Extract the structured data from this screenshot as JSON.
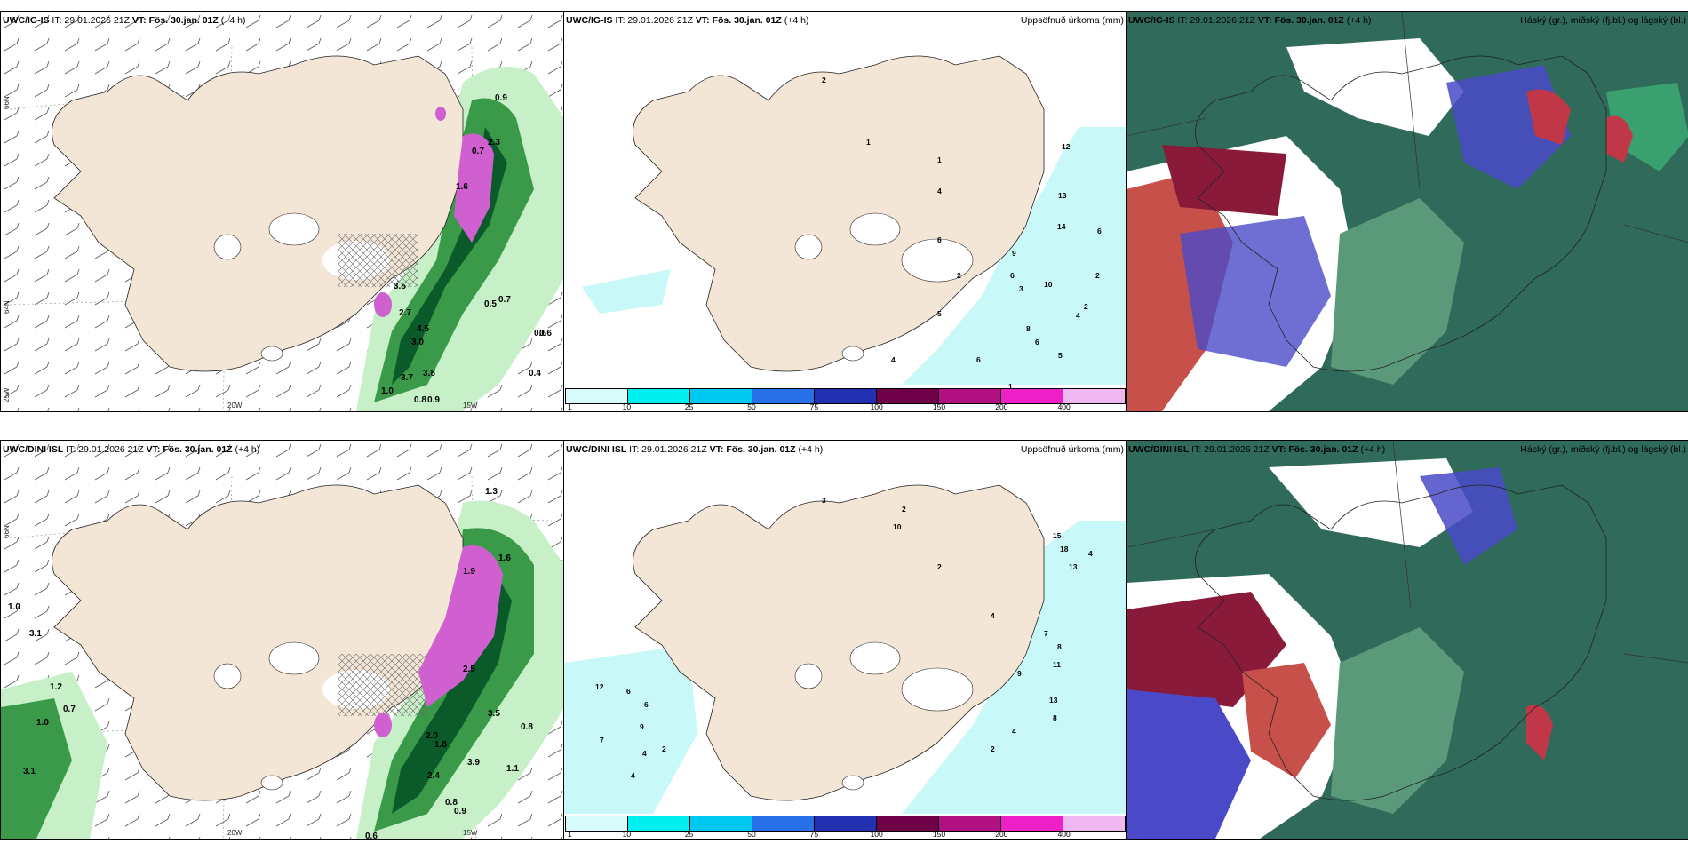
{
  "rows": [
    {
      "panels": [
        {
          "model": "UWC/IG-IS",
          "it": "IT: 29.01.2026 21Z",
          "vt": "VT: Fös. 30.jan. 01Z",
          "lead": "(+4 h)",
          "right_title": ""
        },
        {
          "model": "UWC/IG-IS",
          "it": "IT: 29.01.2026 21Z",
          "vt": "VT: Fös. 30.jan. 01Z",
          "lead": "(+4 h)",
          "right_title": "Uppsöfnuð úrkoma (mm)"
        },
        {
          "model": "UWC/IG-IS",
          "it": "IT: 29.01.2026 21Z",
          "vt": "VT: Fös. 30.jan. 01Z",
          "lead": "(+4 h)",
          "right_title": "Háský (gr.), miðský (fj.bl.) og lágský (bl.)"
        }
      ]
    },
    {
      "panels": [
        {
          "model": "UWC/DINI ISL",
          "it": "IT: 29.01.2026 21Z",
          "vt": "VT: Fös. 30.jan. 01Z",
          "lead": "(+4 h)",
          "right_title": ""
        },
        {
          "model": "UWC/DINI ISL",
          "it": "IT: 29.01.2026 21Z",
          "vt": "VT: Fös. 30.jan. 01Z",
          "lead": "(+4 h)",
          "right_title": "Uppsöfnuð úrkoma (mm)"
        },
        {
          "model": "UWC/DINI ISL",
          "it": "IT: 29.01.2026 21Z",
          "vt": "VT: Fös. 30.jan. 01Z",
          "lead": "(+4 h)",
          "right_title": "Háský (gr.), miðský (fj.bl.) og lágský (bl.)"
        }
      ]
    }
  ],
  "axis_labels": {
    "lat_66": "66N",
    "lat_64": "64N",
    "lon_20": "20W",
    "lon_15": "15W",
    "lat_25": "25W"
  },
  "colorbar": {
    "ticks": [
      "1",
      "10",
      "25",
      "50",
      "75",
      "100",
      "150",
      "200",
      "400"
    ],
    "colors": [
      "#d8fbfb",
      "#00f0f0",
      "#00c8f0",
      "#2870e8",
      "#2030b0",
      "#700048",
      "#b01080",
      "#f020c8",
      "#f0b8f0"
    ]
  },
  "colors": {
    "land": "#f4e6d6",
    "snow": "#ffffff",
    "green_light": "#c8f0c8",
    "green_mid": "#3a9a4a",
    "green_dark": "#0a5a2a",
    "magenta": "#d060d0",
    "precip": "#c8f8f8",
    "cloud_high": "#3a8a7a",
    "cloud_mid": "#4a4ac8",
    "cloud_low": "#8a1a3a"
  },
  "top_left_values": [
    "0.9",
    "0.7",
    "0.6",
    "2.3",
    "1.6",
    "3.5",
    "2.7",
    "4.5",
    "3.0",
    "3.8",
    "3.7",
    "1.0",
    "0.8",
    "0.9",
    "0.5",
    "0.7",
    "0.6",
    "0.4"
  ],
  "top_mid_values": [
    "2",
    "1",
    "1",
    "4",
    "6",
    "12",
    "13",
    "14",
    "9",
    "10",
    "6",
    "2",
    "5",
    "3",
    "4",
    "4",
    "2",
    "6",
    "2",
    "8",
    "6",
    "5",
    "6",
    "1"
  ],
  "bottom_left_values": [
    "1.3",
    "3.1",
    "2.5",
    "3.5",
    "2.0",
    "1.8",
    "2.4",
    "3.9",
    "1.1",
    "0.8",
    "1.0",
    "0.7",
    "1.2",
    "1.0",
    "0.8",
    "0.9",
    "3.1",
    "1.6",
    "1.9",
    "0.6"
  ],
  "bottom_mid_values": [
    "3",
    "2",
    "10",
    "15",
    "18",
    "13",
    "2",
    "4",
    "7",
    "8",
    "11",
    "13",
    "9",
    "4",
    "2",
    "8",
    "4",
    "12",
    "7",
    "9",
    "6",
    "6",
    "4",
    "2",
    "4"
  ]
}
